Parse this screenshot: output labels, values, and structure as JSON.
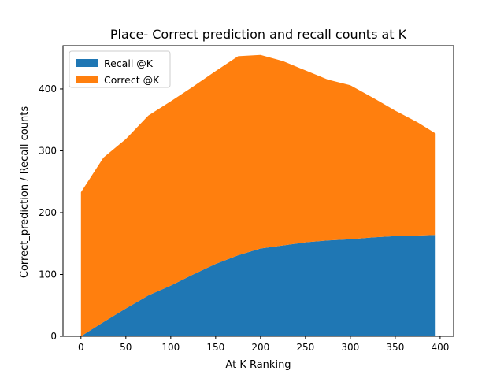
{
  "chart_data": {
    "type": "area",
    "stacked": true,
    "title": "Place- Correct prediction and recall counts at K",
    "xlabel": "At K Ranking",
    "ylabel": "Correct_prediction / Recall counts",
    "xlim": [
      -20,
      415
    ],
    "ylim": [
      0,
      470
    ],
    "xticks": [
      0,
      50,
      100,
      150,
      200,
      250,
      300,
      350,
      400
    ],
    "yticks": [
      0,
      100,
      200,
      300,
      400
    ],
    "legend_position": "upper-left",
    "x": [
      0,
      25,
      50,
      75,
      100,
      125,
      150,
      175,
      200,
      225,
      250,
      275,
      300,
      325,
      350,
      375,
      395
    ],
    "series": [
      {
        "name": "Recall @K",
        "color": "#1f77b4",
        "values": [
          0,
          23,
          45,
          66,
          82,
          100,
          117,
          131,
          142,
          147,
          152,
          155,
          157,
          160,
          162,
          163,
          164
        ]
      },
      {
        "name": "Correct @K",
        "color": "#ff7f0e",
        "values": [
          233,
          266,
          274,
          291,
          298,
          304,
          312,
          322,
          313,
          298,
          278,
          260,
          249,
          226,
          203,
          183,
          164
        ]
      }
    ]
  }
}
